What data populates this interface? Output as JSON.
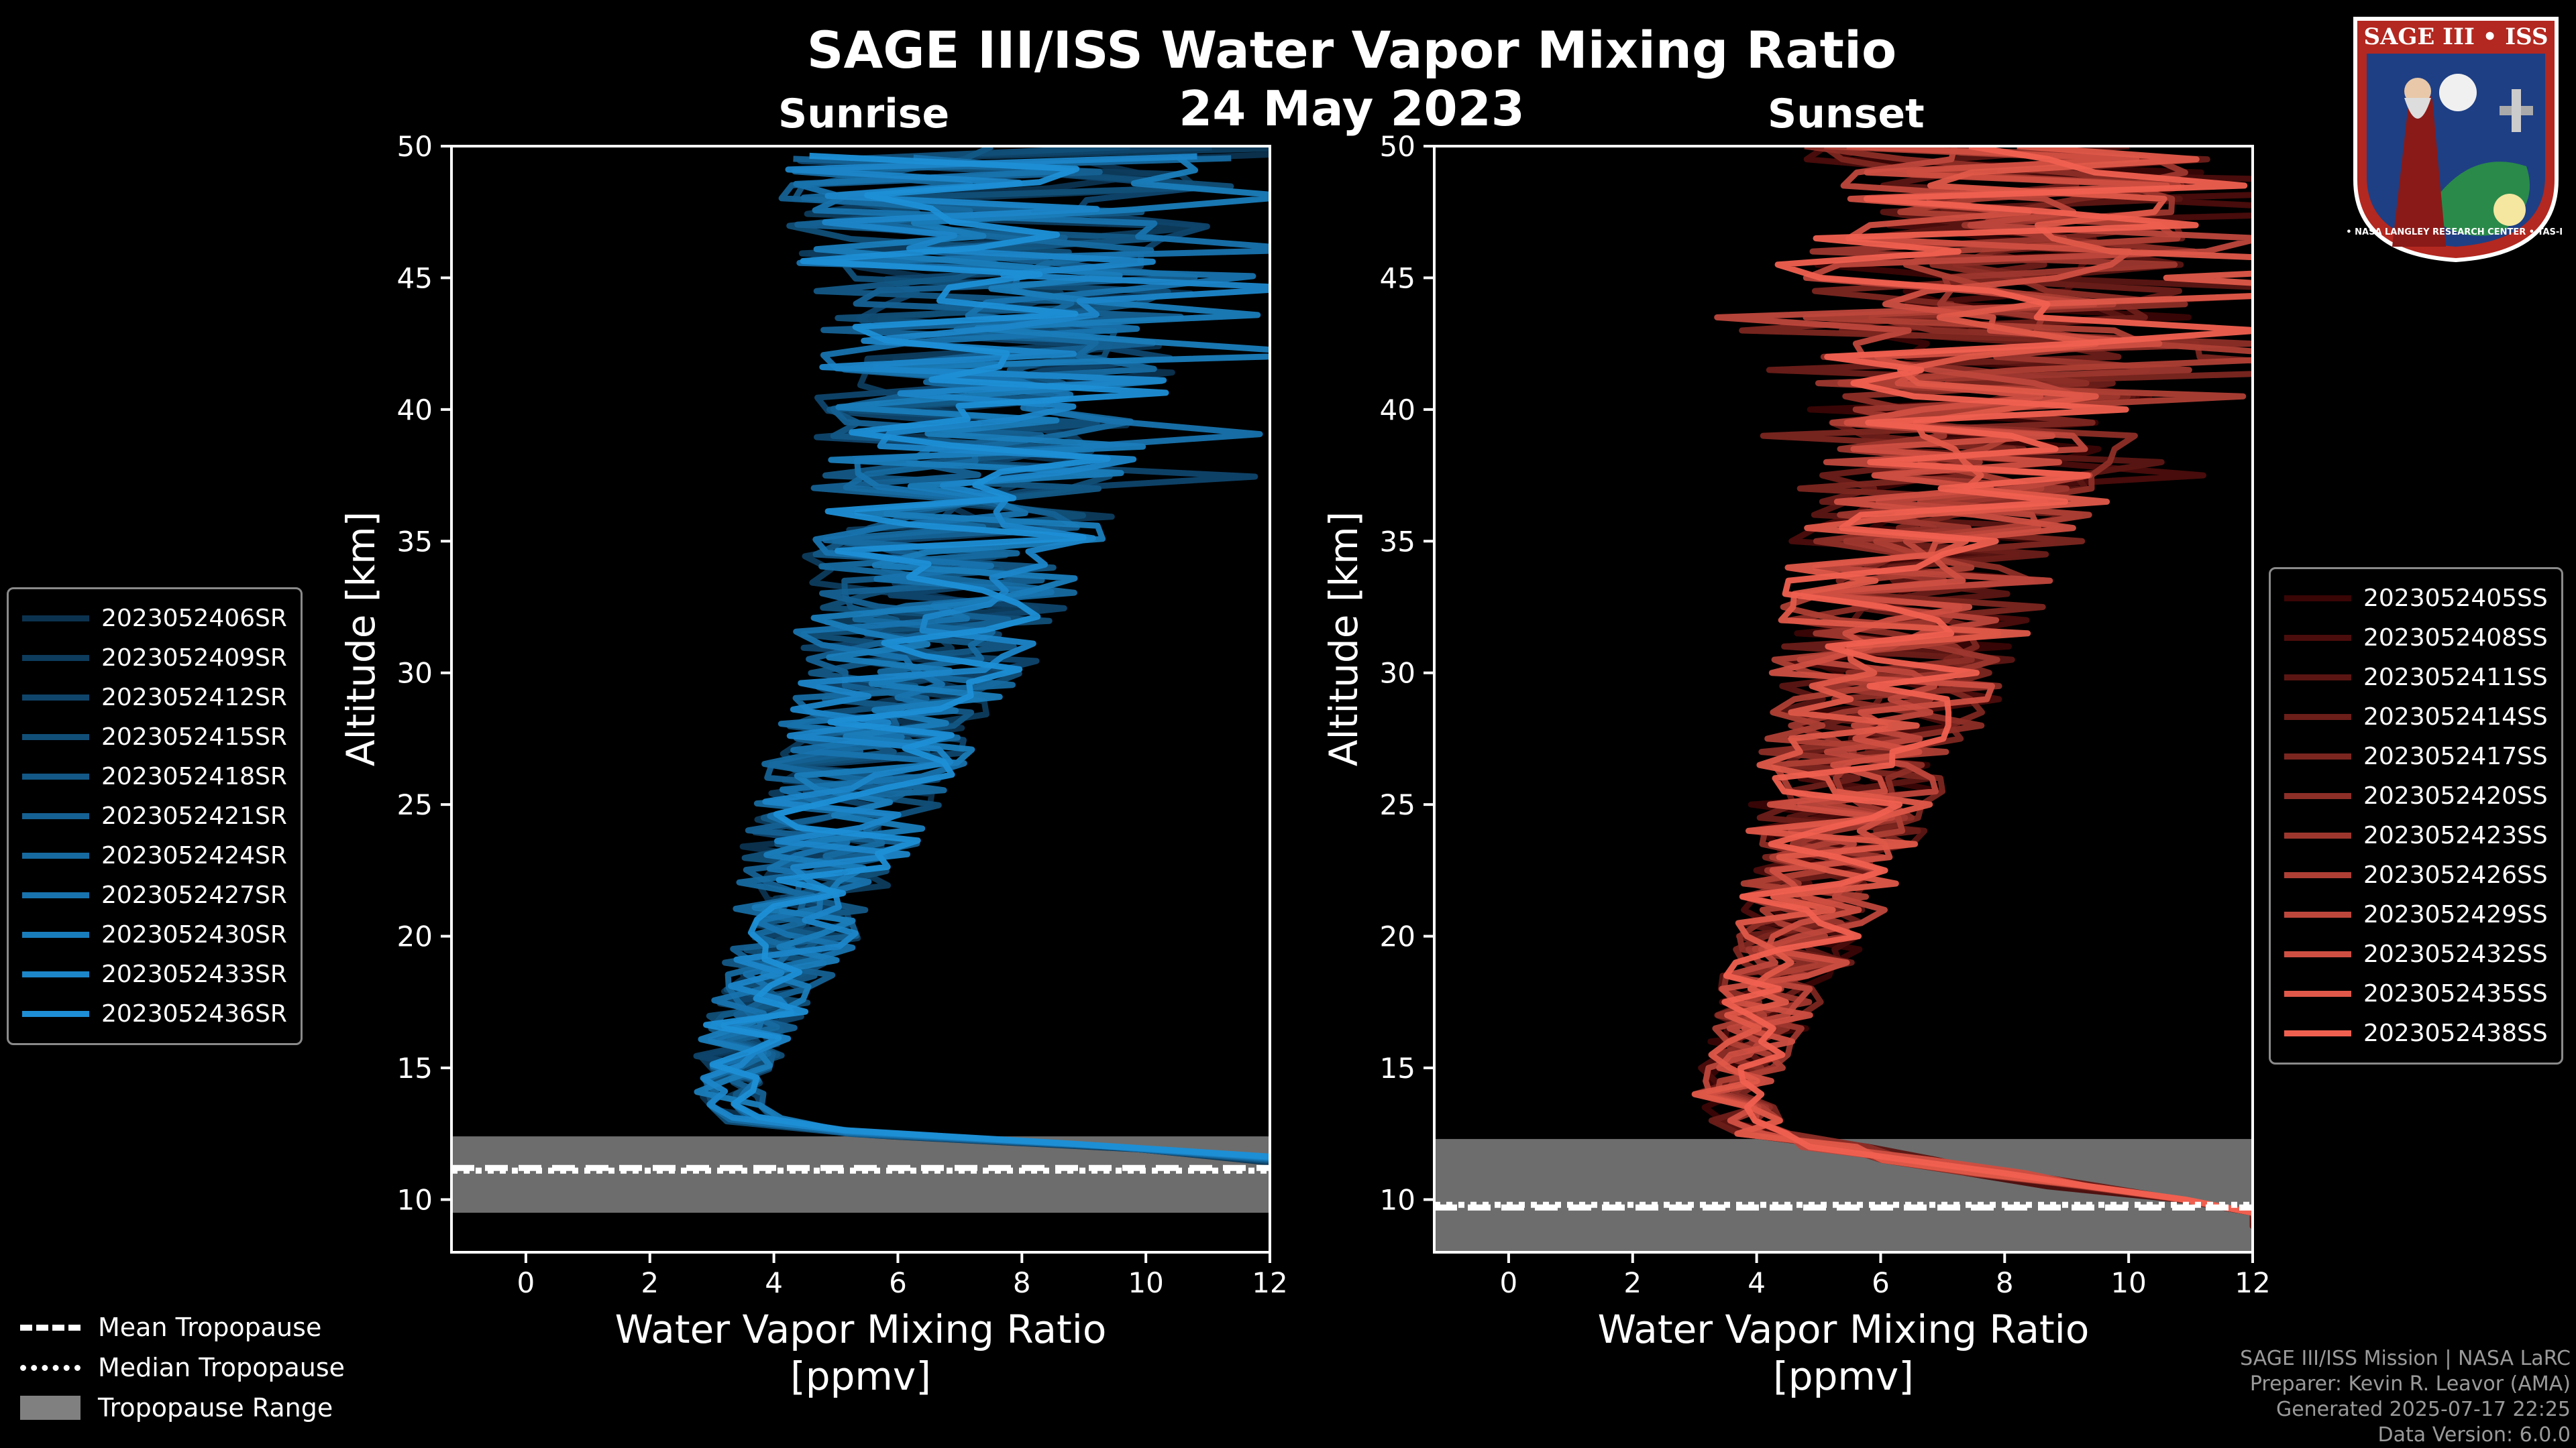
{
  "header": {
    "title": "SAGE III/ISS Water Vapor Mixing Ratio",
    "date": "24 May 2023"
  },
  "chart_data": [
    {
      "type": "line",
      "panel": "sunrise",
      "title": "Sunrise",
      "xlabel": "Water Vapor Mixing Ratio\n[ppmv]",
      "xlabel_line1": "Water Vapor Mixing Ratio",
      "xlabel_line2": "[ppmv]",
      "ylabel": "Altitude [km]",
      "xlim": [
        -1.2,
        12
      ],
      "ylim": [
        8,
        50
      ],
      "xticks": [
        0,
        2,
        4,
        6,
        8,
        10,
        12
      ],
      "yticks": [
        10,
        15,
        20,
        25,
        30,
        35,
        40,
        45,
        50
      ],
      "color_start": "#0b3350",
      "color_end": "#1e8fd6",
      "series": [
        {
          "name": "2023052406SR"
        },
        {
          "name": "2023052409SR"
        },
        {
          "name": "2023052412SR"
        },
        {
          "name": "2023052415SR"
        },
        {
          "name": "2023052418SR"
        },
        {
          "name": "2023052421SR"
        },
        {
          "name": "2023052424SR"
        },
        {
          "name": "2023052427SR"
        },
        {
          "name": "2023052430SR"
        },
        {
          "name": "2023052433SR"
        },
        {
          "name": "2023052436SR"
        }
      ],
      "profile_center": [
        {
          "alt": 11.5,
          "x": 12
        },
        {
          "alt": 12.5,
          "x": 4.0
        },
        {
          "alt": 14,
          "x": 3.3
        },
        {
          "alt": 16,
          "x": 3.5
        },
        {
          "alt": 18,
          "x": 4.0
        },
        {
          "alt": 20,
          "x": 4.3
        },
        {
          "alt": 22,
          "x": 4.6
        },
        {
          "alt": 25,
          "x": 5.2
        },
        {
          "alt": 28,
          "x": 5.8
        },
        {
          "alt": 30,
          "x": 6.2
        },
        {
          "alt": 32,
          "x": 6.5
        },
        {
          "alt": 35,
          "x": 6.9
        },
        {
          "alt": 38,
          "x": 7.3
        },
        {
          "alt": 40,
          "x": 7.5
        },
        {
          "alt": 42,
          "x": 7.7
        },
        {
          "alt": 45,
          "x": 7.7
        },
        {
          "alt": 50,
          "x": 7.5
        }
      ],
      "tropopause": {
        "mean": 11.2,
        "median": 11.1,
        "range": [
          9.5,
          12.4
        ]
      }
    },
    {
      "type": "line",
      "panel": "sunset",
      "title": "Sunset",
      "xlabel": "Water Vapor Mixing Ratio\n[ppmv]",
      "xlabel_line1": "Water Vapor Mixing Ratio",
      "xlabel_line2": "[ppmv]",
      "ylabel": "Altitude [km]",
      "xlim": [
        -1.2,
        12
      ],
      "ylim": [
        8,
        50
      ],
      "xticks": [
        0,
        2,
        4,
        6,
        8,
        10,
        12
      ],
      "yticks": [
        10,
        15,
        20,
        25,
        30,
        35,
        40,
        45,
        50
      ],
      "color_start": "#3a0505",
      "color_end": "#f06050",
      "series": [
        {
          "name": "2023052405SS"
        },
        {
          "name": "2023052408SS"
        },
        {
          "name": "2023052411SS"
        },
        {
          "name": "2023052414SS"
        },
        {
          "name": "2023052417SS"
        },
        {
          "name": "2023052420SS"
        },
        {
          "name": "2023052423SS"
        },
        {
          "name": "2023052426SS"
        },
        {
          "name": "2023052429SS"
        },
        {
          "name": "2023052432SS"
        },
        {
          "name": "2023052435SS"
        },
        {
          "name": "2023052438SS"
        }
      ],
      "profile_center": [
        {
          "alt": 9.5,
          "x": 12
        },
        {
          "alt": 11.5,
          "x": 6.5
        },
        {
          "alt": 12.5,
          "x": 4.0
        },
        {
          "alt": 14,
          "x": 3.6
        },
        {
          "alt": 16,
          "x": 3.9
        },
        {
          "alt": 18,
          "x": 4.3
        },
        {
          "alt": 20,
          "x": 4.8
        },
        {
          "alt": 22,
          "x": 5.0
        },
        {
          "alt": 25,
          "x": 5.4
        },
        {
          "alt": 28,
          "x": 5.9
        },
        {
          "alt": 30,
          "x": 6.2
        },
        {
          "alt": 32,
          "x": 6.5
        },
        {
          "alt": 35,
          "x": 6.9
        },
        {
          "alt": 38,
          "x": 7.4
        },
        {
          "alt": 40,
          "x": 7.6
        },
        {
          "alt": 42,
          "x": 7.8
        },
        {
          "alt": 45,
          "x": 8.0
        },
        {
          "alt": 50,
          "x": 7.8
        }
      ],
      "tropopause": {
        "mean": 9.7,
        "median": 9.8,
        "range": [
          8.0,
          12.3
        ]
      }
    }
  ],
  "legend_bottom": {
    "mean": "Mean Tropopause",
    "median": "Median Tropopause",
    "range": "Tropopause Range"
  },
  "footer": {
    "line1": "SAGE III/ISS Mission | NASA LaRC",
    "line2": "Preparer: Kevin R. Leavor (AMA)",
    "line3": "Generated 2025-07-17 22:25",
    "line4": "Data Version: 6.0.0"
  },
  "logo": {
    "top": "SAGE III • ISS",
    "bottom": "BALL • NASA LANGLEY RESEARCH CENTER • TAS-I • ESA"
  },
  "colors": {
    "background": "#000000",
    "axis": "#ffffff",
    "tropo_fill": "#808080"
  }
}
